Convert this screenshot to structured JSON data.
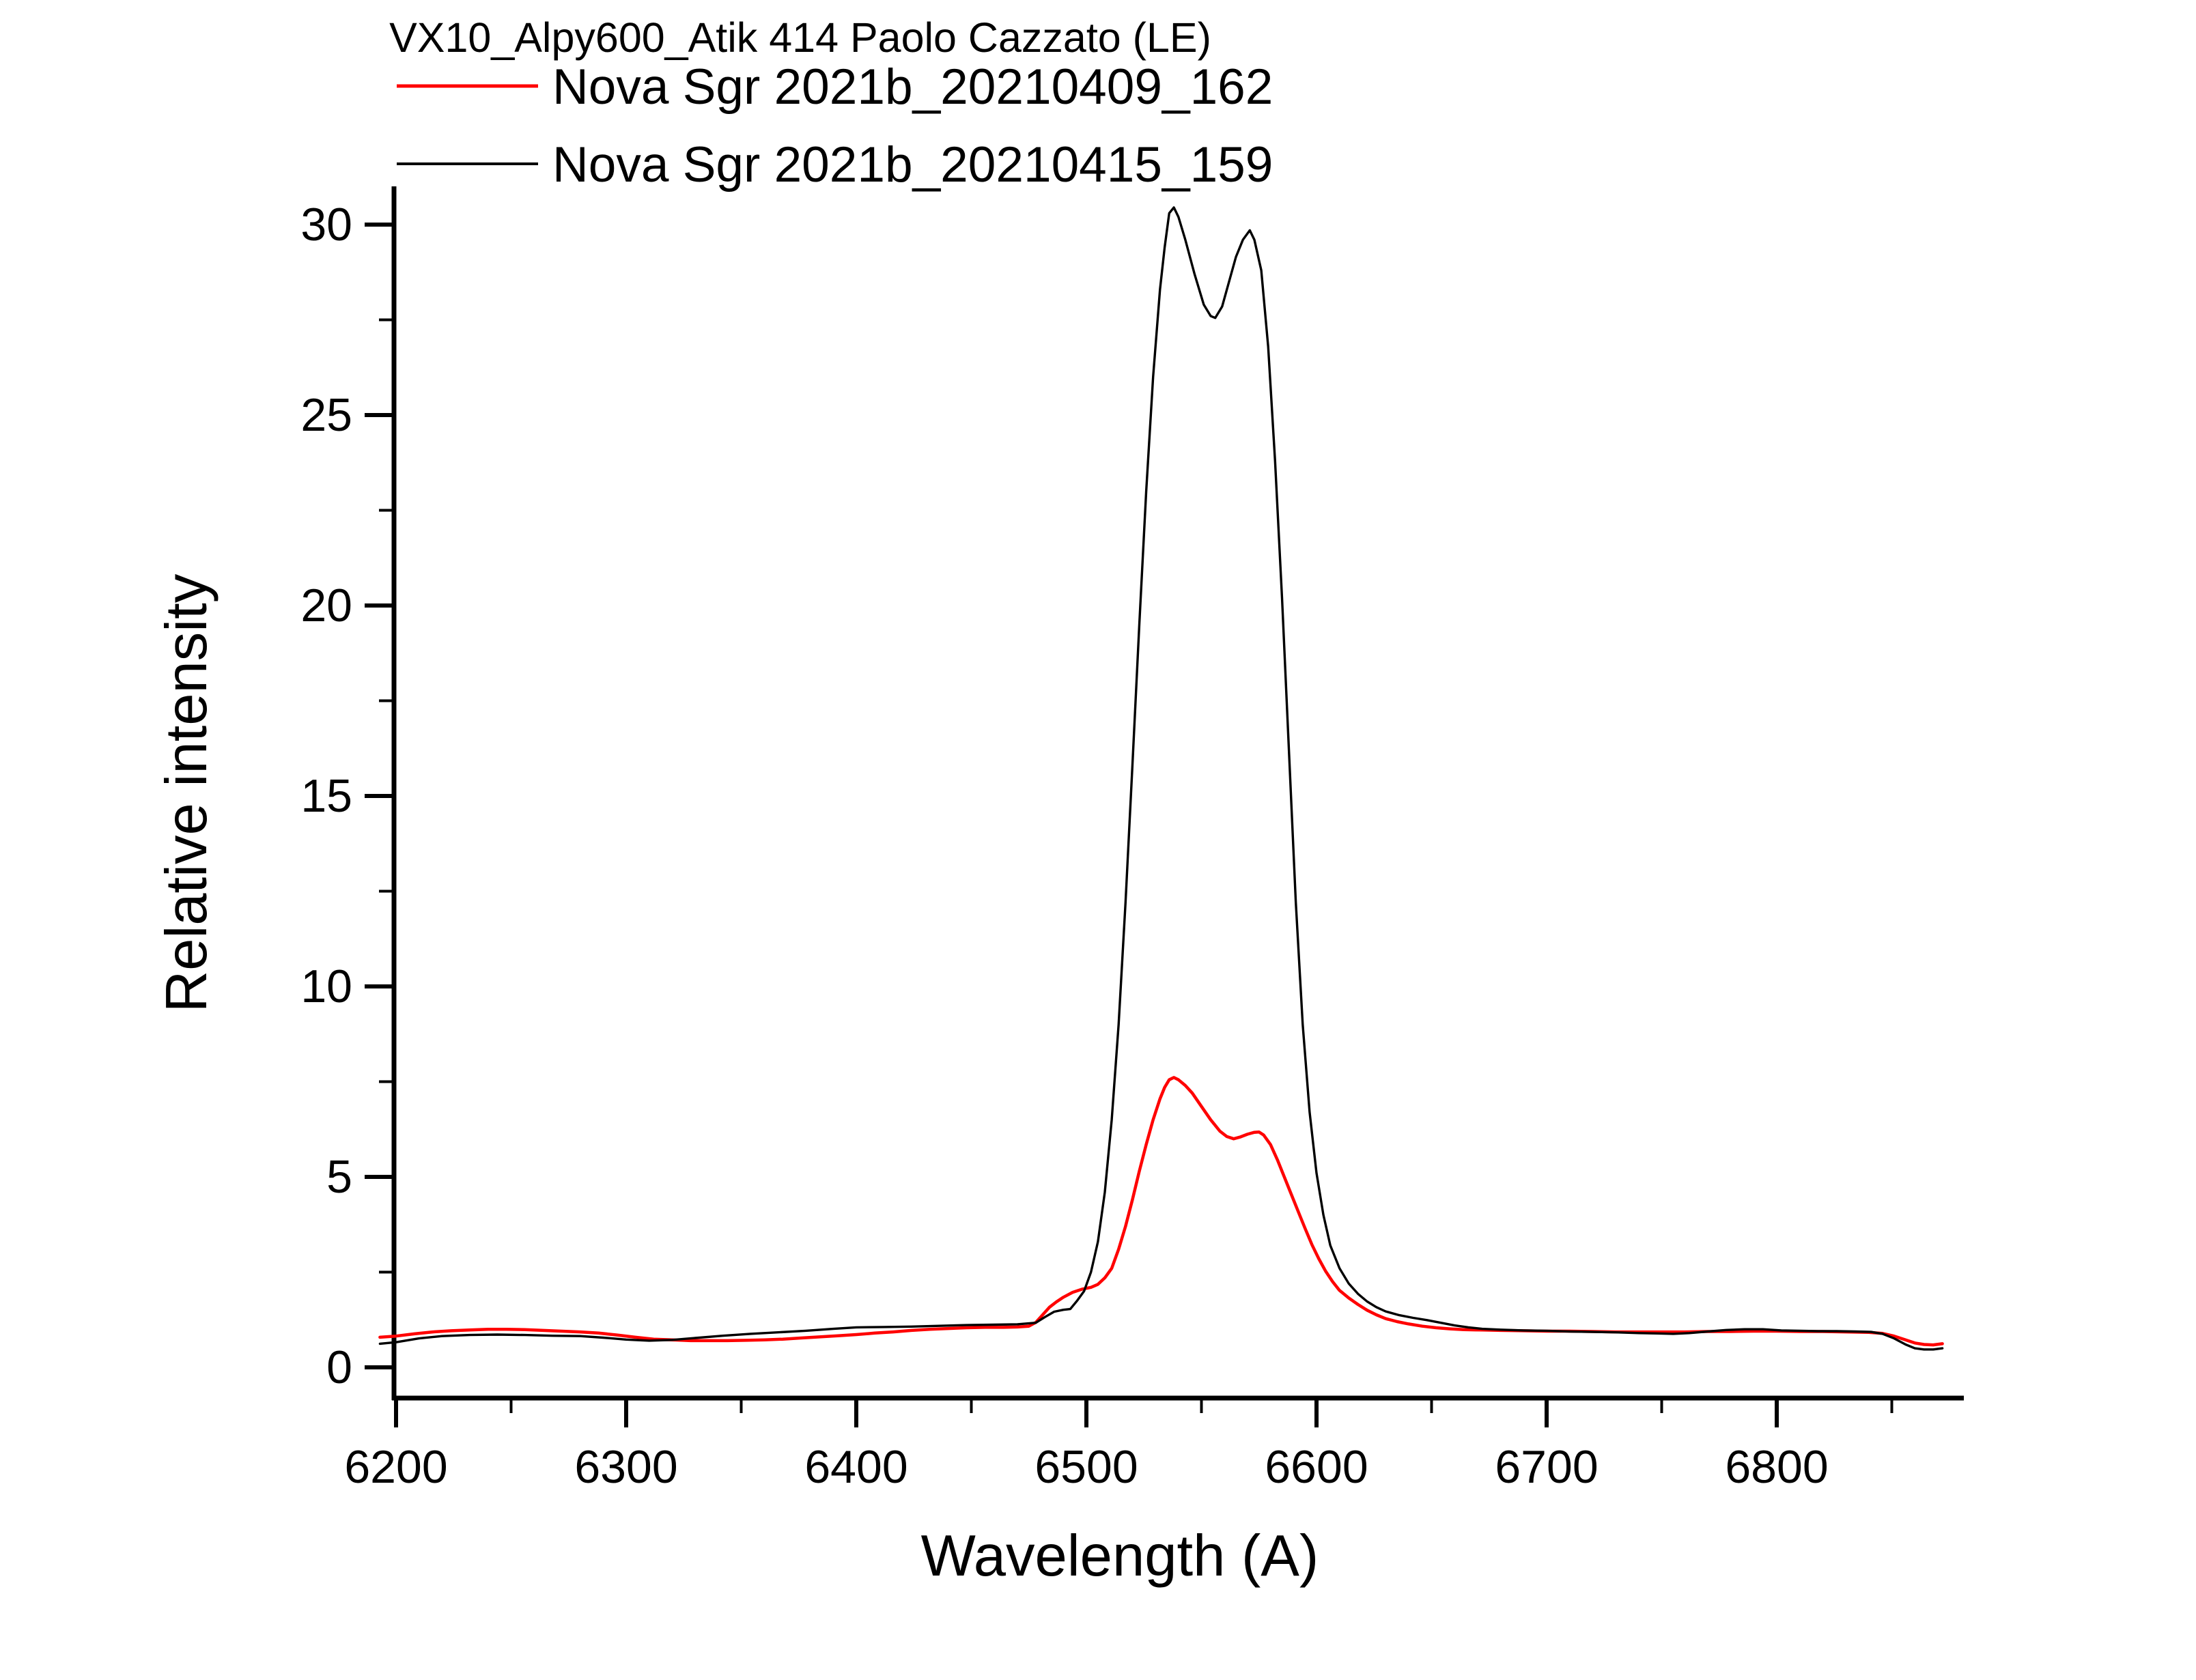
{
  "header": {
    "title": "VX10_Alpy600_Atik 414 Paolo Cazzato (LE)",
    "legend": [
      {
        "label": "Nova Sgr 2021b_20210409_162",
        "color": "#ff0000"
      },
      {
        "label": "Nova Sgr 2021b_20210415_159",
        "color": "#000000"
      }
    ]
  },
  "chart_data": {
    "type": "line",
    "title": "VX10_Alpy600_Atik 414 Paolo Cazzato (LE)",
    "xlabel": "Wavelength (A)",
    "ylabel": "Relative intensity",
    "xlim": [
      6193,
      6885
    ],
    "ylim": [
      -0.8,
      31.1
    ],
    "grid": false,
    "legend_position": "above-plot-top-left",
    "x_major_ticks": [
      6200,
      6300,
      6400,
      6500,
      6600,
      6700,
      6800
    ],
    "x_minor_ticks": [
      6250,
      6350,
      6450,
      6550,
      6650,
      6750,
      6850
    ],
    "y_major_ticks": [
      0,
      5,
      10,
      15,
      20,
      25,
      30
    ],
    "y_minor_ticks": [
      2.5,
      7.5,
      12.5,
      17.5,
      22.5,
      27.5
    ],
    "series": [
      {
        "name": "Nova Sgr 2021b_20210409_162",
        "color": "#ff0000",
        "peak_wavelength": 6538,
        "peak_value": 7.61,
        "points": [
          [
            6193,
            0.79
          ],
          [
            6200,
            0.82
          ],
          [
            6208,
            0.88
          ],
          [
            6216,
            0.93
          ],
          [
            6224,
            0.96
          ],
          [
            6232,
            0.98
          ],
          [
            6240,
            1.0
          ],
          [
            6248,
            1.0
          ],
          [
            6256,
            0.99
          ],
          [
            6264,
            0.97
          ],
          [
            6272,
            0.95
          ],
          [
            6280,
            0.93
          ],
          [
            6288,
            0.9
          ],
          [
            6296,
            0.85
          ],
          [
            6304,
            0.79
          ],
          [
            6312,
            0.74
          ],
          [
            6320,
            0.72
          ],
          [
            6328,
            0.7
          ],
          [
            6336,
            0.7
          ],
          [
            6344,
            0.7
          ],
          [
            6352,
            0.71
          ],
          [
            6360,
            0.72
          ],
          [
            6368,
            0.74
          ],
          [
            6376,
            0.77
          ],
          [
            6384,
            0.8
          ],
          [
            6392,
            0.83
          ],
          [
            6400,
            0.86
          ],
          [
            6408,
            0.9
          ],
          [
            6416,
            0.93
          ],
          [
            6424,
            0.97
          ],
          [
            6432,
            1.0
          ],
          [
            6440,
            1.02
          ],
          [
            6448,
            1.04
          ],
          [
            6456,
            1.05
          ],
          [
            6464,
            1.05
          ],
          [
            6470,
            1.06
          ],
          [
            6475,
            1.08
          ],
          [
            6478,
            1.18
          ],
          [
            6481,
            1.38
          ],
          [
            6484,
            1.58
          ],
          [
            6487,
            1.72
          ],
          [
            6490,
            1.84
          ],
          [
            6494,
            1.97
          ],
          [
            6498,
            2.05
          ],
          [
            6502,
            2.1
          ],
          [
            6505,
            2.18
          ],
          [
            6508,
            2.35
          ],
          [
            6511,
            2.6
          ],
          [
            6514,
            3.1
          ],
          [
            6517,
            3.7
          ],
          [
            6520,
            4.4
          ],
          [
            6523,
            5.15
          ],
          [
            6526,
            5.85
          ],
          [
            6529,
            6.5
          ],
          [
            6532,
            7.05
          ],
          [
            6534,
            7.35
          ],
          [
            6536,
            7.55
          ],
          [
            6538,
            7.61
          ],
          [
            6540,
            7.55
          ],
          [
            6543,
            7.4
          ],
          [
            6546,
            7.2
          ],
          [
            6550,
            6.85
          ],
          [
            6554,
            6.5
          ],
          [
            6558,
            6.2
          ],
          [
            6561,
            6.06
          ],
          [
            6564,
            6.0
          ],
          [
            6567,
            6.05
          ],
          [
            6570,
            6.12
          ],
          [
            6573,
            6.17
          ],
          [
            6575,
            6.18
          ],
          [
            6577,
            6.1
          ],
          [
            6580,
            5.85
          ],
          [
            6583,
            5.45
          ],
          [
            6586,
            5.0
          ],
          [
            6589,
            4.55
          ],
          [
            6592,
            4.1
          ],
          [
            6595,
            3.65
          ],
          [
            6598,
            3.22
          ],
          [
            6601,
            2.85
          ],
          [
            6604,
            2.52
          ],
          [
            6607,
            2.25
          ],
          [
            6610,
            2.02
          ],
          [
            6614,
            1.82
          ],
          [
            6618,
            1.65
          ],
          [
            6622,
            1.5
          ],
          [
            6626,
            1.38
          ],
          [
            6630,
            1.28
          ],
          [
            6635,
            1.2
          ],
          [
            6640,
            1.14
          ],
          [
            6646,
            1.08
          ],
          [
            6652,
            1.04
          ],
          [
            6658,
            1.01
          ],
          [
            6664,
            0.99
          ],
          [
            6672,
            0.98
          ],
          [
            6680,
            0.97
          ],
          [
            6690,
            0.96
          ],
          [
            6700,
            0.95
          ],
          [
            6710,
            0.95
          ],
          [
            6720,
            0.94
          ],
          [
            6730,
            0.93
          ],
          [
            6740,
            0.93
          ],
          [
            6750,
            0.93
          ],
          [
            6760,
            0.93
          ],
          [
            6770,
            0.94
          ],
          [
            6780,
            0.94
          ],
          [
            6790,
            0.95
          ],
          [
            6800,
            0.95
          ],
          [
            6810,
            0.94
          ],
          [
            6820,
            0.94
          ],
          [
            6830,
            0.93
          ],
          [
            6840,
            0.92
          ],
          [
            6846,
            0.89
          ],
          [
            6851,
            0.82
          ],
          [
            6856,
            0.72
          ],
          [
            6860,
            0.64
          ],
          [
            6864,
            0.6
          ],
          [
            6868,
            0.59
          ],
          [
            6872,
            0.62
          ]
        ]
      },
      {
        "name": "Nova Sgr 2021b_20210415_159",
        "color": "#000000",
        "peak_wavelength": 6538,
        "peak_value": 30.45,
        "points": [
          [
            6193,
            0.62
          ],
          [
            6200,
            0.66
          ],
          [
            6210,
            0.76
          ],
          [
            6220,
            0.82
          ],
          [
            6232,
            0.85
          ],
          [
            6244,
            0.86
          ],
          [
            6256,
            0.85
          ],
          [
            6268,
            0.83
          ],
          [
            6280,
            0.82
          ],
          [
            6290,
            0.78
          ],
          [
            6300,
            0.73
          ],
          [
            6310,
            0.7
          ],
          [
            6320,
            0.72
          ],
          [
            6330,
            0.77
          ],
          [
            6342,
            0.83
          ],
          [
            6354,
            0.88
          ],
          [
            6366,
            0.92
          ],
          [
            6378,
            0.96
          ],
          [
            6390,
            1.01
          ],
          [
            6400,
            1.05
          ],
          [
            6412,
            1.06
          ],
          [
            6424,
            1.07
          ],
          [
            6436,
            1.09
          ],
          [
            6448,
            1.11
          ],
          [
            6460,
            1.12
          ],
          [
            6470,
            1.13
          ],
          [
            6478,
            1.17
          ],
          [
            6482,
            1.32
          ],
          [
            6486,
            1.46
          ],
          [
            6490,
            1.51
          ],
          [
            6493,
            1.53
          ],
          [
            6496,
            1.75
          ],
          [
            6499,
            2.0
          ],
          [
            6502,
            2.5
          ],
          [
            6505,
            3.3
          ],
          [
            6508,
            4.6
          ],
          [
            6511,
            6.5
          ],
          [
            6514,
            9.0
          ],
          [
            6517,
            12.2
          ],
          [
            6520,
            15.8
          ],
          [
            6523,
            19.5
          ],
          [
            6526,
            23.0
          ],
          [
            6529,
            26.0
          ],
          [
            6532,
            28.3
          ],
          [
            6534,
            29.4
          ],
          [
            6536,
            30.3
          ],
          [
            6538,
            30.45
          ],
          [
            6540,
            30.2
          ],
          [
            6543,
            29.6
          ],
          [
            6547,
            28.7
          ],
          [
            6551,
            27.9
          ],
          [
            6554,
            27.6
          ],
          [
            6556,
            27.55
          ],
          [
            6559,
            27.85
          ],
          [
            6562,
            28.5
          ],
          [
            6565,
            29.15
          ],
          [
            6568,
            29.6
          ],
          [
            6571,
            29.85
          ],
          [
            6573,
            29.6
          ],
          [
            6576,
            28.8
          ],
          [
            6579,
            26.8
          ],
          [
            6582,
            23.8
          ],
          [
            6585,
            20.2
          ],
          [
            6588,
            16.2
          ],
          [
            6591,
            12.2
          ],
          [
            6594,
            9.0
          ],
          [
            6597,
            6.7
          ],
          [
            6600,
            5.1
          ],
          [
            6603,
            4.0
          ],
          [
            6606,
            3.2
          ],
          [
            6610,
            2.6
          ],
          [
            6614,
            2.2
          ],
          [
            6618,
            1.93
          ],
          [
            6622,
            1.73
          ],
          [
            6626,
            1.58
          ],
          [
            6630,
            1.47
          ],
          [
            6636,
            1.37
          ],
          [
            6642,
            1.3
          ],
          [
            6648,
            1.24
          ],
          [
            6654,
            1.17
          ],
          [
            6660,
            1.1
          ],
          [
            6666,
            1.05
          ],
          [
            6672,
            1.01
          ],
          [
            6680,
            0.99
          ],
          [
            6690,
            0.97
          ],
          [
            6700,
            0.96
          ],
          [
            6710,
            0.94
          ],
          [
            6720,
            0.93
          ],
          [
            6730,
            0.92
          ],
          [
            6740,
            0.9
          ],
          [
            6748,
            0.89
          ],
          [
            6755,
            0.88
          ],
          [
            6762,
            0.9
          ],
          [
            6770,
            0.94
          ],
          [
            6778,
            0.98
          ],
          [
            6786,
            1.0
          ],
          [
            6794,
            1.0
          ],
          [
            6802,
            0.97
          ],
          [
            6810,
            0.96
          ],
          [
            6818,
            0.95
          ],
          [
            6826,
            0.95
          ],
          [
            6834,
            0.94
          ],
          [
            6841,
            0.93
          ],
          [
            6846,
            0.88
          ],
          [
            6851,
            0.76
          ],
          [
            6856,
            0.6
          ],
          [
            6860,
            0.5
          ],
          [
            6864,
            0.47
          ],
          [
            6868,
            0.47
          ],
          [
            6872,
            0.5
          ]
        ]
      }
    ]
  }
}
